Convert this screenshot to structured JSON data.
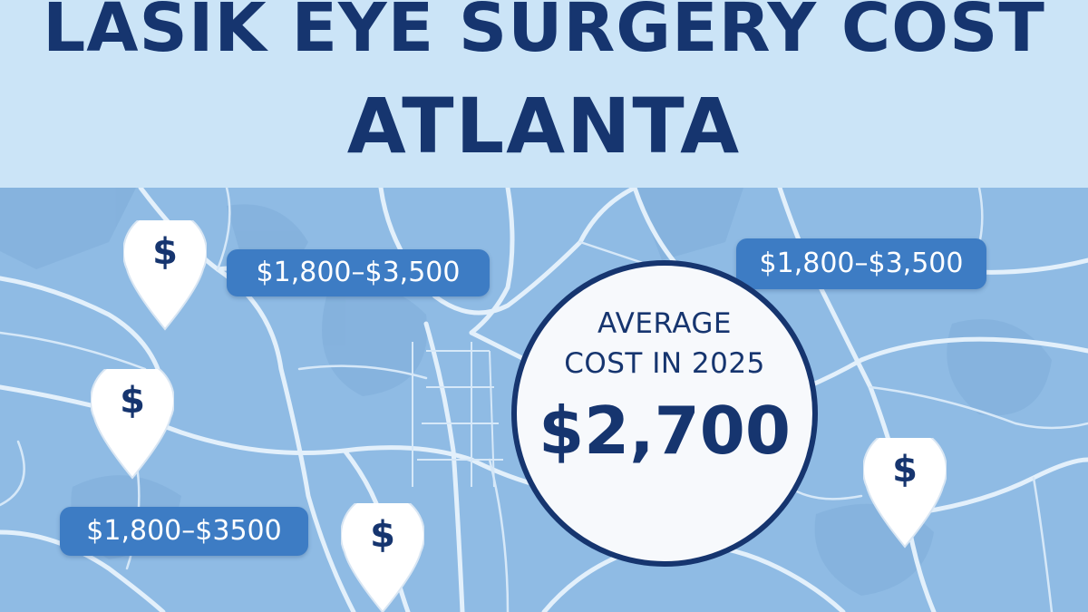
{
  "header": {
    "title_line1": "LASIK EYE SURGERY COST",
    "title_line2": "ATLANTA"
  },
  "average": {
    "label_line1": "AVERAGE",
    "label_line2": "COST IN 2025",
    "value": "$2,700"
  },
  "price_tags": [
    {
      "text": "$1,800–$3,500"
    },
    {
      "text": "$1,800–$3,500"
    },
    {
      "text": "$1,800–$3500"
    }
  ],
  "pins": [
    {
      "symbol": "$",
      "icon": "dollar-pin-icon"
    },
    {
      "symbol": "$",
      "icon": "dollar-pin-icon"
    },
    {
      "symbol": "$",
      "icon": "dollar-pin-icon"
    },
    {
      "symbol": "$",
      "icon": "dollar-pin-icon"
    }
  ],
  "colors": {
    "header_bg": "#cbe4f7",
    "title": "#16356f",
    "map_bg": "#8fbbe4",
    "roads": "#e3f0fb",
    "tag_bg": "#3d7cc4",
    "circle_bg": "#f7f9fc"
  }
}
